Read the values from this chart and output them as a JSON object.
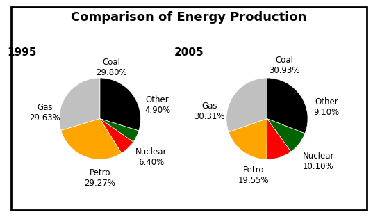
{
  "title": "Comparison of Energy Production",
  "title_fontsize": 13,
  "title_fontweight": "bold",
  "year1": "1995",
  "year2": "2005",
  "labels": [
    "Coal",
    "Other",
    "Nuclear",
    "Petro",
    "Gas"
  ],
  "values1": [
    29.8,
    4.9,
    6.4,
    29.27,
    29.63
  ],
  "values2": [
    30.93,
    9.1,
    10.1,
    19.55,
    30.31
  ],
  "colors": [
    "#000000",
    "#006400",
    "#ff0000",
    "#ffa500",
    "#c0c0c0"
  ],
  "pct_texts1": [
    "29.80%",
    "4.90%",
    "6.40%",
    "29.27%",
    "29.63%"
  ],
  "pct_texts2": [
    "30.93%",
    "9.10%",
    "10.10%",
    "19.55%",
    "30.31%"
  ],
  "background_color": "#ffffff",
  "border_color": "#000000",
  "startangle": 90,
  "year_fontsize": 11,
  "label_fontsize": 8.5
}
